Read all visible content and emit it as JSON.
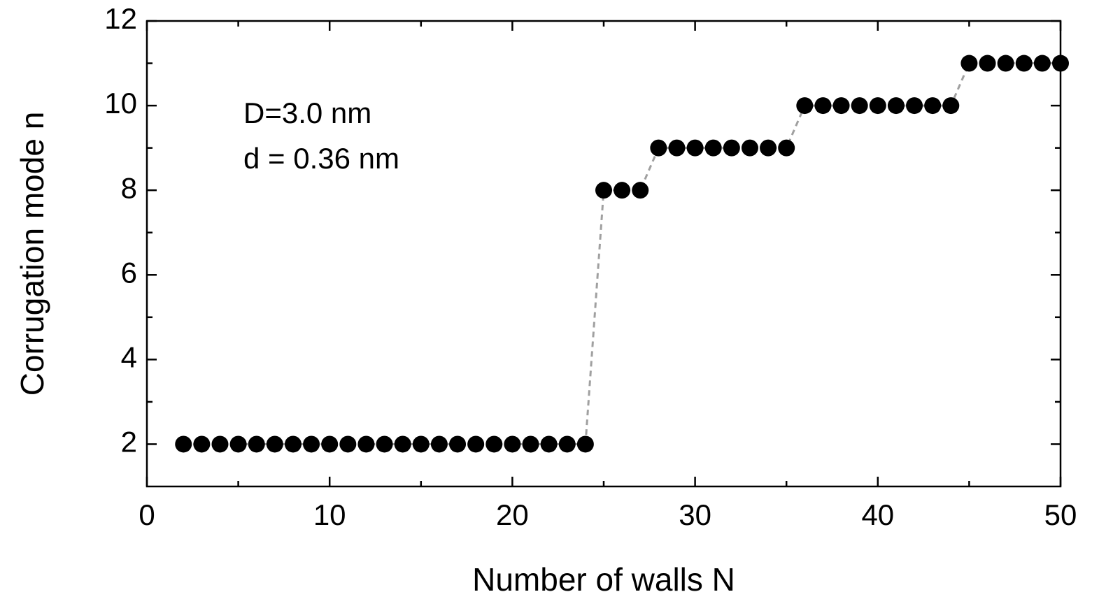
{
  "chart_data": {
    "type": "scatter",
    "xlabel": "Number of walls N",
    "ylabel": "Corrugation mode n",
    "annotations": [
      "D=3.0 nm",
      "d = 0.36 nm"
    ],
    "x": [
      2,
      3,
      4,
      5,
      6,
      7,
      8,
      9,
      10,
      11,
      12,
      13,
      14,
      15,
      16,
      17,
      18,
      19,
      20,
      21,
      22,
      23,
      24,
      25,
      26,
      27,
      28,
      29,
      30,
      31,
      32,
      33,
      34,
      35,
      36,
      37,
      38,
      39,
      40,
      41,
      42,
      43,
      44,
      45,
      46,
      47,
      48,
      49,
      50
    ],
    "values": [
      2,
      2,
      2,
      2,
      2,
      2,
      2,
      2,
      2,
      2,
      2,
      2,
      2,
      2,
      2,
      2,
      2,
      2,
      2,
      2,
      2,
      2,
      2,
      8,
      8,
      8,
      9,
      9,
      9,
      9,
      9,
      9,
      9,
      9,
      10,
      10,
      10,
      10,
      10,
      10,
      10,
      10,
      10,
      11,
      11,
      11,
      11,
      11,
      11
    ],
    "color": "#000000",
    "line_color": "#a0a0a0",
    "xlim": [
      0,
      50
    ],
    "xticks": [
      0,
      10,
      20,
      30,
      40,
      50
    ],
    "xminorticks": [
      5,
      15,
      25,
      35,
      45
    ],
    "ylim": [
      1,
      12
    ],
    "yticks": [
      2,
      4,
      6,
      8,
      10,
      12
    ],
    "yminorticks": [
      3,
      5,
      7,
      9,
      11
    ]
  }
}
